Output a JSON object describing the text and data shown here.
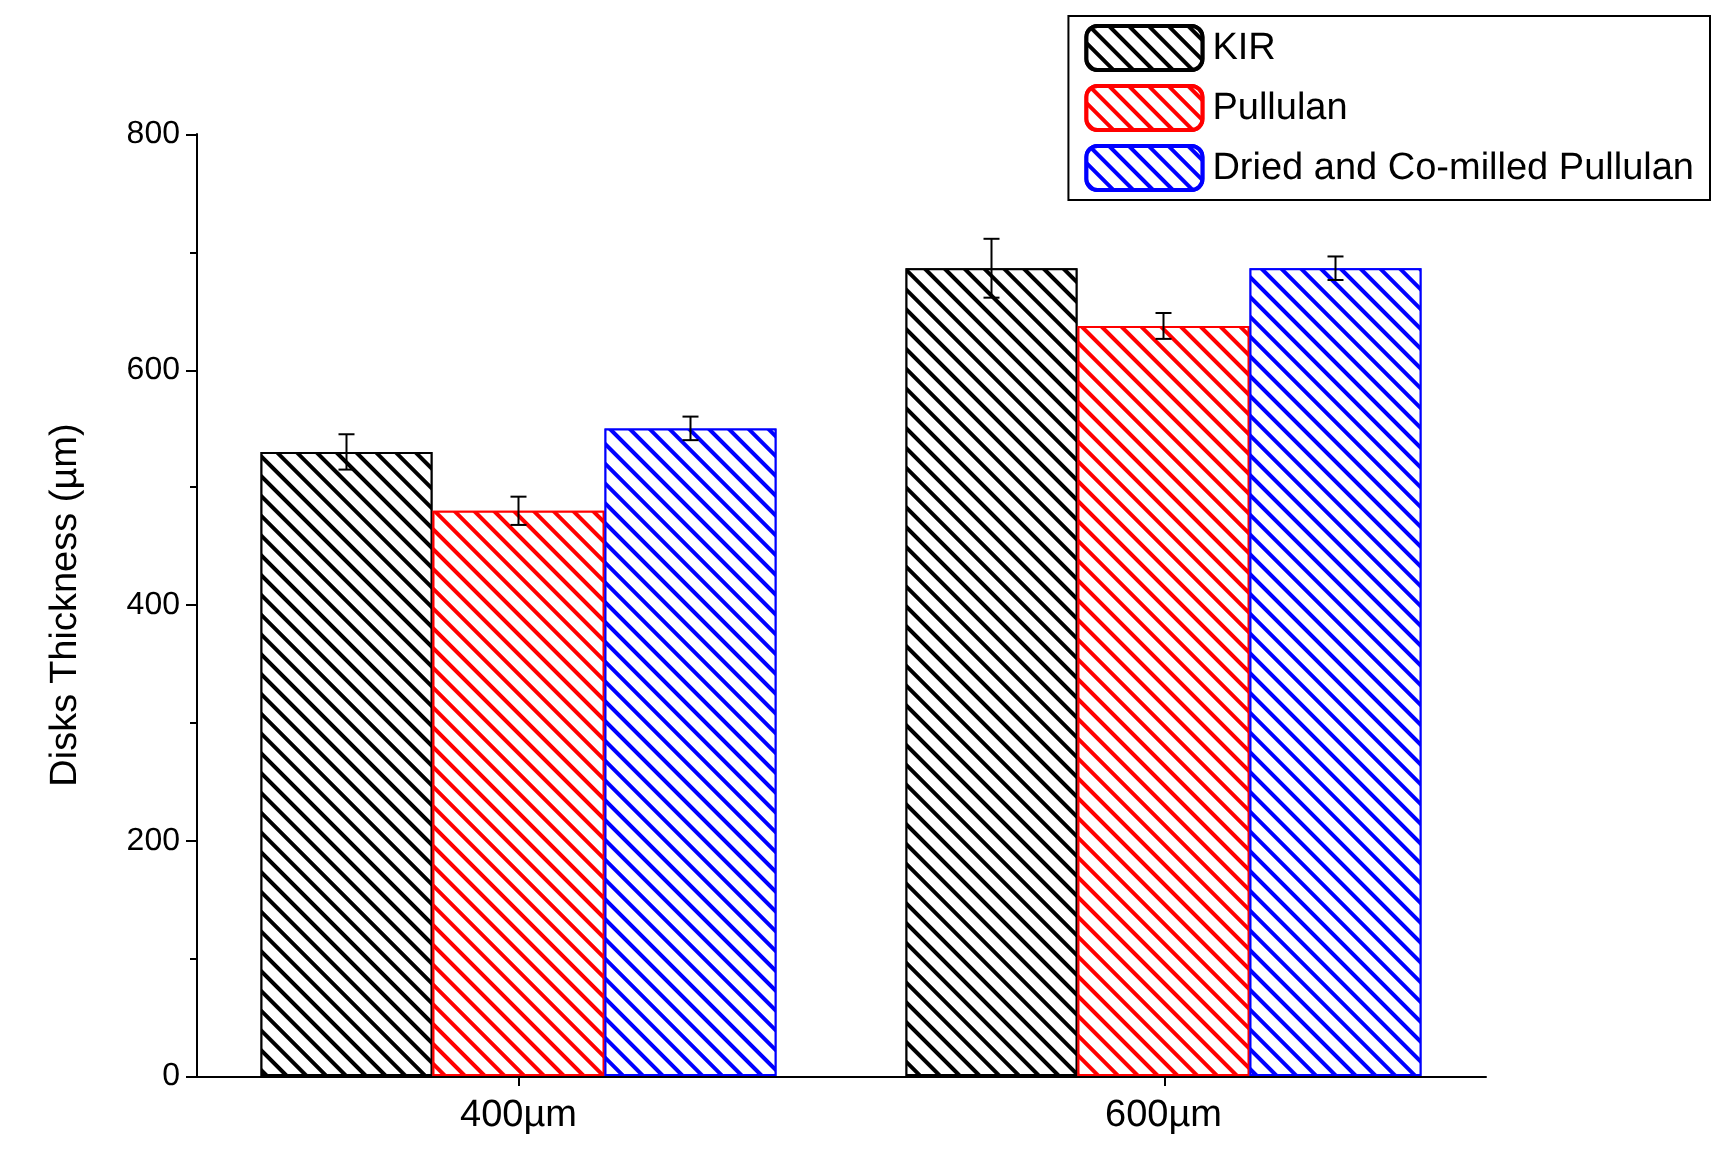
{
  "chart_data": {
    "type": "bar",
    "ylabel": "Disks Thickness (µm)",
    "categories": [
      "400µm",
      "600µm"
    ],
    "series": [
      {
        "name": "KIR",
        "color": "#000000",
        "values": [
          530,
          686
        ],
        "errors": [
          15,
          25
        ]
      },
      {
        "name": "Pullulan",
        "color": "#ff0000",
        "values": [
          480,
          637
        ],
        "errors": [
          12,
          11
        ]
      },
      {
        "name": "Dried and Co-milled Pullulan",
        "color": "#0000ff",
        "values": [
          550,
          686
        ],
        "errors": [
          10,
          10
        ]
      }
    ],
    "ylim": [
      0,
      800
    ],
    "yticks": [
      0,
      200,
      400,
      600,
      800
    ],
    "grid": false,
    "legend": "top right"
  }
}
